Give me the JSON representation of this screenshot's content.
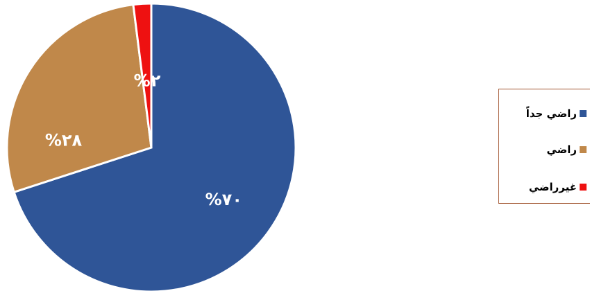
{
  "chart_data": {
    "type": "pie",
    "slices": [
      {
        "label": "راضي جداً",
        "value": 70,
        "data_label": "%٧٠",
        "color": "#2f5597"
      },
      {
        "label": "راضي",
        "value": 28,
        "data_label": "%٢٨",
        "color": "#c0884a"
      },
      {
        "label": "غيرراضي",
        "value": 2,
        "data_label": "%٢",
        "color": "#ee1111"
      }
    ],
    "legend_position": "right"
  }
}
